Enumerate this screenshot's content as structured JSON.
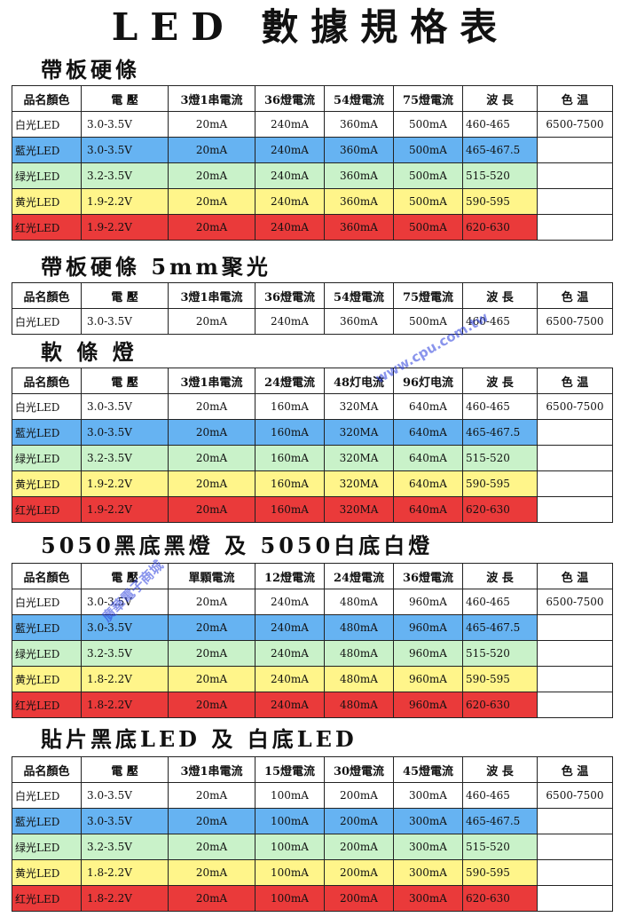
{
  "title": "LED 數據規格表",
  "sections": [
    {
      "title": "帶板硬條",
      "headers": [
        "品名顏色",
        "電 壓",
        "3燈1串電流",
        "36燈電流",
        "54燈電流",
        "75燈電流",
        "波 長",
        "色 温"
      ],
      "rows": [
        {
          "name": "白光LED",
          "voltage": "3.0-3.5V",
          "c1": "20mA",
          "c2": "240mA",
          "c3": "360mA",
          "c4": "500mA",
          "wave": "460-465",
          "temp": "6500-7500",
          "color": "white"
        },
        {
          "name": "藍光LED",
          "voltage": "3.0-3.5V",
          "c1": "20mA",
          "c2": "240mA",
          "c3": "360mA",
          "c4": "500mA",
          "wave": "465-467.5",
          "temp": "",
          "color": "blue"
        },
        {
          "name": "绿光LED",
          "voltage": "3.2-3.5V",
          "c1": "20mA",
          "c2": "240mA",
          "c3": "360mA",
          "c4": "500mA",
          "wave": "515-520",
          "temp": "",
          "color": "green"
        },
        {
          "name": "黄光LED",
          "voltage": "1.9-2.2V",
          "c1": "20mA",
          "c2": "240mA",
          "c3": "360mA",
          "c4": "500mA",
          "wave": "590-595",
          "temp": "",
          "color": "yellow"
        },
        {
          "name": "红光LED",
          "voltage": "1.9-2.2V",
          "c1": "20mA",
          "c2": "240mA",
          "c3": "360mA",
          "c4": "500mA",
          "wave": "620-630",
          "temp": "",
          "color": "red"
        }
      ]
    },
    {
      "title": "帶板硬條 5mm聚光",
      "headers": [
        "品名顏色",
        "電 壓",
        "3燈1串電流",
        "36燈電流",
        "54燈電流",
        "75燈電流",
        "波 長",
        "色 温"
      ],
      "rows": [
        {
          "name": "白光LED",
          "voltage": "3.0-3.5V",
          "c1": "20mA",
          "c2": "240mA",
          "c3": "360mA",
          "c4": "500mA",
          "wave": "460-465",
          "temp": "6500-7500",
          "color": "white"
        }
      ]
    },
    {
      "title": "軟 條 燈",
      "headers": [
        "品名顏色",
        "電 壓",
        "3燈1串電流",
        "24燈電流",
        "48灯电流",
        "96灯电流",
        "波 長",
        "色 温"
      ],
      "rows": [
        {
          "name": "白光LED",
          "voltage": "3.0-3.5V",
          "c1": "20mA",
          "c2": "160mA",
          "c3": "320MA",
          "c4": "640mA",
          "wave": "460-465",
          "temp": "6500-7500",
          "color": "white"
        },
        {
          "name": "藍光LED",
          "voltage": "3.0-3.5V",
          "c1": "20mA",
          "c2": "160mA",
          "c3": "320MA",
          "c4": "640mA",
          "wave": "465-467.5",
          "temp": "",
          "color": "blue"
        },
        {
          "name": "绿光LED",
          "voltage": "3.2-3.5V",
          "c1": "20mA",
          "c2": "160mA",
          "c3": "320MA",
          "c4": "640mA",
          "wave": "515-520",
          "temp": "",
          "color": "green"
        },
        {
          "name": "黄光LED",
          "voltage": "1.9-2.2V",
          "c1": "20mA",
          "c2": "160mA",
          "c3": "320MA",
          "c4": "640mA",
          "wave": "590-595",
          "temp": "",
          "color": "yellow"
        },
        {
          "name": "红光LED",
          "voltage": "1.9-2.2V",
          "c1": "20mA",
          "c2": "160mA",
          "c3": "320MA",
          "c4": "640mA",
          "wave": "620-630",
          "temp": "",
          "color": "red"
        }
      ]
    },
    {
      "title": "5050黑底黑燈 及 5050白底白燈",
      "headers": [
        "品名顏色",
        "電 壓",
        "單顆電流",
        "12燈電流",
        "24燈電流",
        "36燈電流",
        "波 長",
        "色 温"
      ],
      "rows": [
        {
          "name": "白光LED",
          "voltage": "3.0-3.5V",
          "c1": "20mA",
          "c2": "240mA",
          "c3": "480mA",
          "c4": "960mA",
          "wave": "460-465",
          "temp": "6500-7500",
          "color": "white"
        },
        {
          "name": "藍光LED",
          "voltage": "3.0-3.5V",
          "c1": "20mA",
          "c2": "240mA",
          "c3": "480mA",
          "c4": "960mA",
          "wave": "465-467.5",
          "temp": "",
          "color": "blue"
        },
        {
          "name": "绿光LED",
          "voltage": "3.2-3.5V",
          "c1": "20mA",
          "c2": "240mA",
          "c3": "480mA",
          "c4": "960mA",
          "wave": "515-520",
          "temp": "",
          "color": "green"
        },
        {
          "name": "黄光LED",
          "voltage": "1.8-2.2V",
          "c1": "20mA",
          "c2": "240mA",
          "c3": "480mA",
          "c4": "960mA",
          "wave": "590-595",
          "temp": "",
          "color": "yellow"
        },
        {
          "name": "红光LED",
          "voltage": "1.8-2.2V",
          "c1": "20mA",
          "c2": "240mA",
          "c3": "480mA",
          "c4": "960mA",
          "wave": "620-630",
          "temp": "",
          "color": "red"
        }
      ]
    },
    {
      "title": "貼片黑底LED 及 白底LED",
      "headers": [
        "品名顏色",
        "電 壓",
        "3燈1串電流",
        "15燈電流",
        "30燈電流",
        "45燈電流",
        "波 長",
        "色 温"
      ],
      "rows": [
        {
          "name": "白光LED",
          "voltage": "3.0-3.5V",
          "c1": "20mA",
          "c2": "100mA",
          "c3": "200mA",
          "c4": "300mA",
          "wave": "460-465",
          "temp": "6500-7500",
          "color": "white"
        },
        {
          "name": "藍光LED",
          "voltage": "3.0-3.5V",
          "c1": "20mA",
          "c2": "100mA",
          "c3": "200mA",
          "c4": "300mA",
          "wave": "465-467.5",
          "temp": "",
          "color": "blue"
        },
        {
          "name": "绿光LED",
          "voltage": "3.2-3.5V",
          "c1": "20mA",
          "c2": "100mA",
          "c3": "200mA",
          "c4": "300mA",
          "wave": "515-520",
          "temp": "",
          "color": "green"
        },
        {
          "name": "黄光LED",
          "voltage": "1.8-2.2V",
          "c1": "20mA",
          "c2": "100mA",
          "c3": "200mA",
          "c4": "300mA",
          "wave": "590-595",
          "temp": "",
          "color": "yellow"
        },
        {
          "name": "红光LED",
          "voltage": "1.8-2.2V",
          "c1": "20mA",
          "c2": "100mA",
          "c3": "200mA",
          "c4": "300mA",
          "wave": "620-630",
          "temp": "",
          "color": "red"
        }
      ]
    }
  ],
  "watermarks": [
    "廣華電子商城",
    "www.cpu.com.tw"
  ],
  "colors": {
    "white": "#ffffff",
    "blue": "#66b3f2",
    "green": "#c9f2c9",
    "yellow": "#fff58a",
    "red": "#ea3a3a"
  }
}
